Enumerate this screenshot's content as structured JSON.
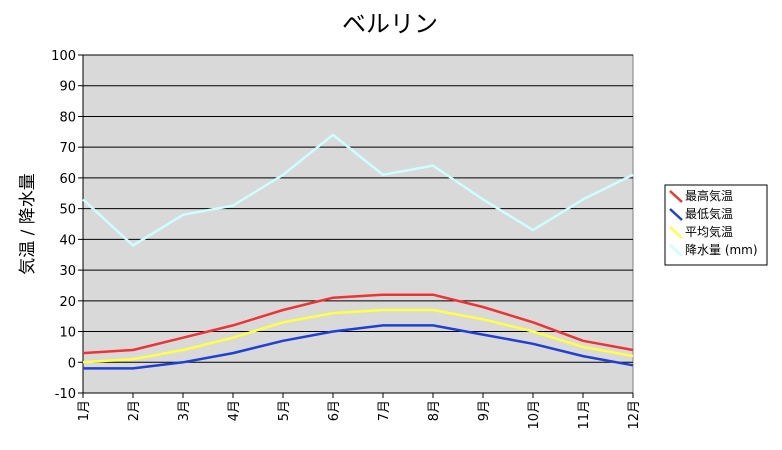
{
  "chart_data": {
    "type": "line",
    "title": "ベルリン",
    "ylabel": "気温 / 降水量",
    "xlabel": "",
    "categories": [
      "1月",
      "2月",
      "3月",
      "4月",
      "5月",
      "6月",
      "7月",
      "8月",
      "9月",
      "10月",
      "11月",
      "12月"
    ],
    "yticks": [
      "-10",
      "0",
      "10",
      "20",
      "30",
      "40",
      "50",
      "60",
      "70",
      "80",
      "90",
      "100"
    ],
    "ylim": [
      -10,
      100
    ],
    "grid": true,
    "legend_position": "right",
    "plot_background": "#d9d9d9",
    "series": [
      {
        "name": "最高気温",
        "color": "#ee3333",
        "values": [
          3,
          4,
          8,
          12,
          17,
          21,
          22,
          22,
          18,
          13,
          7,
          4
        ]
      },
      {
        "name": "最低気温",
        "color": "#1f3fd6",
        "values": [
          -2,
          -2,
          0,
          3,
          7,
          10,
          12,
          12,
          9,
          6,
          2,
          -1
        ]
      },
      {
        "name": "平均気温",
        "color": "#ffff44",
        "values": [
          0,
          1,
          4,
          8,
          13,
          16,
          17,
          17,
          14,
          10,
          5,
          2
        ]
      },
      {
        "name": "降水量 (mm)",
        "color": "#ccffff",
        "values": [
          53,
          38,
          48,
          51,
          61,
          74,
          61,
          64,
          53,
          43,
          53,
          61
        ]
      }
    ]
  }
}
